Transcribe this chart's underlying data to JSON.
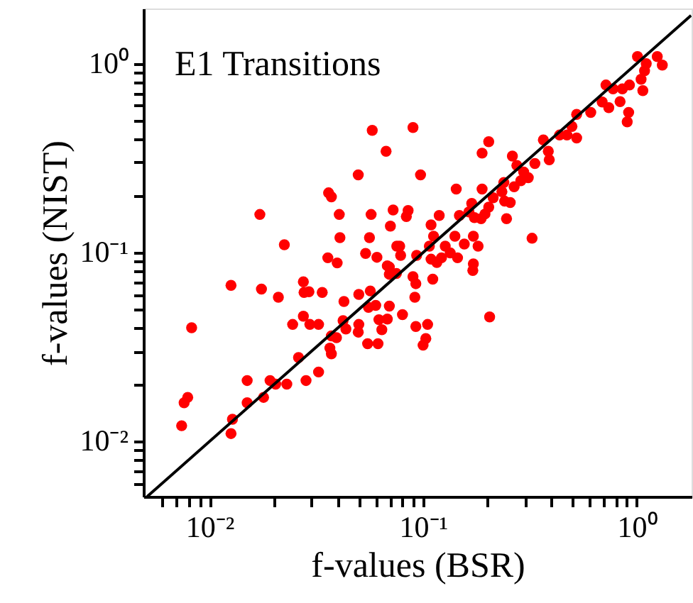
{
  "chart_data": {
    "type": "scatter",
    "title": "E1 Transitions",
    "xlabel": "f-values (BSR)",
    "ylabel": "f-values (NIST)",
    "log": "xy",
    "grid": false,
    "xlim": [
      0.0049,
      1.81
    ],
    "ylim": [
      0.0051,
      1.96
    ],
    "xticks": [
      {
        "value": 0.006,
        "label": null
      },
      {
        "value": 0.007,
        "label": null
      },
      {
        "value": 0.008,
        "label": null
      },
      {
        "value": 0.009,
        "label": null
      },
      {
        "value": 0.01,
        "label": "10⁻²"
      },
      {
        "value": 0.02,
        "label": null
      },
      {
        "value": 0.03,
        "label": null
      },
      {
        "value": 0.04,
        "label": null
      },
      {
        "value": 0.05,
        "label": null
      },
      {
        "value": 0.06,
        "label": null
      },
      {
        "value": 0.07,
        "label": null
      },
      {
        "value": 0.08,
        "label": null
      },
      {
        "value": 0.09,
        "label": null
      },
      {
        "value": 0.1,
        "label": "10⁻¹"
      },
      {
        "value": 0.2,
        "label": null
      },
      {
        "value": 0.3,
        "label": null
      },
      {
        "value": 0.4,
        "label": null
      },
      {
        "value": 0.5,
        "label": null
      },
      {
        "value": 0.6,
        "label": null
      },
      {
        "value": 0.7,
        "label": null
      },
      {
        "value": 0.8,
        "label": null
      },
      {
        "value": 0.9,
        "label": null
      },
      {
        "value": 1,
        "label": "10⁰"
      }
    ],
    "yticks": [
      {
        "value": 0.006,
        "label": null
      },
      {
        "value": 0.007,
        "label": null
      },
      {
        "value": 0.008,
        "label": null
      },
      {
        "value": 0.009,
        "label": null
      },
      {
        "value": 0.01,
        "label": "10⁻²"
      },
      {
        "value": 0.02,
        "label": null
      },
      {
        "value": 0.03,
        "label": null
      },
      {
        "value": 0.04,
        "label": null
      },
      {
        "value": 0.05,
        "label": null
      },
      {
        "value": 0.06,
        "label": null
      },
      {
        "value": 0.07,
        "label": null
      },
      {
        "value": 0.08,
        "label": null
      },
      {
        "value": 0.09,
        "label": null
      },
      {
        "value": 0.1,
        "label": "10⁻¹"
      },
      {
        "value": 0.2,
        "label": null
      },
      {
        "value": 0.3,
        "label": null
      },
      {
        "value": 0.4,
        "label": null
      },
      {
        "value": 0.5,
        "label": null
      },
      {
        "value": 0.6,
        "label": null
      },
      {
        "value": 0.7,
        "label": null
      },
      {
        "value": 0.8,
        "label": null
      },
      {
        "value": 0.9,
        "label": null
      },
      {
        "value": 1,
        "label": "10⁰"
      }
    ],
    "series": [
      {
        "marker": "circle",
        "color": "#ff0000",
        "x": [
          0.0126,
          0.0175,
          0.021,
          0.0275,
          0.0277,
          0.0292,
          0.0337,
          0.0426,
          0.05,
          0.0566,
          0.0555,
          0.06,
          0.0695,
          0.00824,
          0.0245,
          0.0275,
          0.0295,
          0.0324,
          0.0422,
          0.0435,
          0.05,
          0.0497,
          0.0621,
          0.068,
          0.0641,
          0.0372,
          0.0393,
          0.0366,
          0.0372,
          0.055,
          0.0615,
          0.0261,
          0.0324,
          0.0283,
          0.0192,
          0.0204,
          0.023,
          0.015,
          0.0179,
          0.015,
          0.0079,
          0.0076,
          0.0074,
          0.0128,
          0.0126,
          0.0358,
          0.0396,
          0.0695,
          0.075,
          0.0578,
          0.0671,
          0.0497,
          0.0361,
          0.0372,
          0.0172,
          0.0405,
          0.0571,
          0.0724,
          0.0703,
          0.0408,
          0.0561,
          0.0224,
          0.0753,
          0.0538,
          0.0608,
          0.068,
          1.01,
          1.25,
          1.32,
          1.11,
          1.09,
          1.05,
          1.07,
          0.926,
          0.858,
          0.837,
          0.918,
          0.904,
          0.719,
          0.776,
          0.69,
          0.741,
          0.61,
          0.524,
          0.498,
          0.472,
          0.524,
          0.436,
          0.366,
          0.386,
          0.39,
          0.334,
          0.262,
          0.275,
          0.296,
          0.287,
          0.311,
          0.267,
          0.239,
          0.234,
          0.241,
          0.256,
          0.246,
          0.213,
          0.203,
          0.189,
          0.195,
          0.203,
          0.189,
          0.143,
          0.169,
          0.164,
          0.174,
          0.187,
          0.148,
          0.119,
          0.109,
          0.112,
          0.141,
          0.156,
          0.172,
          0.181,
          0.127,
          0.134,
          0.122,
          0.107,
          0.109,
          0.145,
          0.172,
          0.0933,
          0.0777,
          0.0785,
          0.324,
          0.0897,
          0.0973,
          0.0851,
          0.0835,
          0.116,
          0.171,
          0.111,
          0.0897,
          0.0925,
          0.0915,
          0.0695,
          0.0801,
          0.205,
          0.0925,
          0.105,
          0.103,
          0.1
        ],
        "values": [
          0.067,
          0.064,
          0.058,
          0.07,
          0.0615,
          0.062,
          0.0615,
          0.055,
          0.06,
          0.0626,
          0.0512,
          0.0525,
          0.052,
          0.04,
          0.0416,
          0.046,
          0.0416,
          0.0416,
          0.0436,
          0.0394,
          0.0416,
          0.0379,
          0.0441,
          0.0444,
          0.039,
          0.0362,
          0.0354,
          0.0312,
          0.0291,
          0.0329,
          0.0329,
          0.0278,
          0.0233,
          0.021,
          0.021,
          0.0201,
          0.0201,
          0.021,
          0.0171,
          0.016,
          0.0171,
          0.016,
          0.0121,
          0.0131,
          0.011,
          0.0938,
          0.0881,
          0.0837,
          0.0774,
          0.444,
          0.344,
          0.258,
          0.207,
          0.197,
          0.159,
          0.159,
          0.159,
          0.168,
          0.138,
          0.12,
          0.12,
          0.11,
          0.108,
          0.0989,
          0.0944,
          0.0851,
          1.09,
          1.09,
          0.983,
          1.0,
          0.917,
          0.827,
          0.72,
          0.771,
          0.736,
          0.63,
          0.552,
          0.492,
          0.771,
          0.736,
          0.627,
          0.585,
          0.552,
          0.539,
          0.465,
          0.419,
          0.404,
          0.419,
          0.395,
          0.344,
          0.31,
          0.296,
          0.324,
          0.289,
          0.267,
          0.24,
          0.249,
          0.223,
          0.235,
          0.21,
          0.187,
          0.184,
          0.151,
          0.195,
          0.174,
          0.217,
          0.16,
          0.386,
          0.336,
          0.217,
          0.182,
          0.164,
          0.153,
          0.151,
          0.157,
          0.157,
          0.14,
          0.122,
          0.122,
          0.111,
          0.122,
          0.108,
          0.108,
          0.0995,
          0.0938,
          0.108,
          0.0922,
          0.0938,
          0.0871,
          0.0966,
          0.108,
          0.0966,
          0.119,
          0.459,
          0.258,
          0.167,
          0.155,
          0.0886,
          0.0803,
          0.0723,
          0.0745,
          0.0684,
          0.058,
          0.0767,
          0.0469,
          0.0456,
          0.0406,
          0.0416,
          0.035,
          0.0323
        ]
      },
      {
        "type": "line",
        "color": "#000000",
        "line_style": "solid",
        "x": [
          0.0051,
          1.8
        ],
        "values": [
          0.0051,
          1.8
        ]
      }
    ]
  }
}
